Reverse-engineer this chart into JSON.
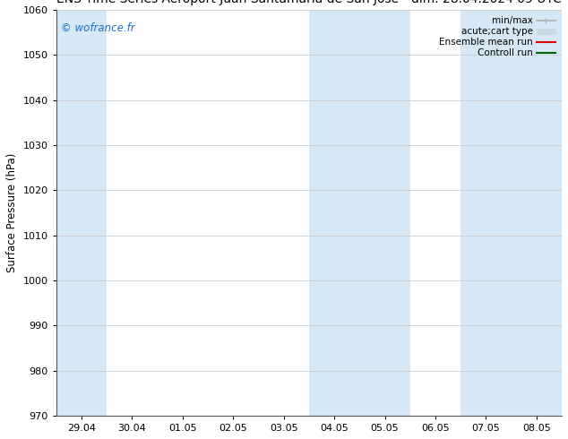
{
  "ylabel": "Surface Pressure (hPa)",
  "ylim": [
    970,
    1060
  ],
  "yticks": [
    970,
    980,
    990,
    1000,
    1010,
    1020,
    1030,
    1040,
    1050,
    1060
  ],
  "xtick_labels": [
    "29.04",
    "30.04",
    "01.05",
    "02.05",
    "03.05",
    "04.05",
    "05.05",
    "06.05",
    "07.05",
    "08.05"
  ],
  "xtick_positions": [
    0,
    1,
    2,
    3,
    4,
    5,
    6,
    7,
    8,
    9
  ],
  "xlim": [
    -0.5,
    9.5
  ],
  "shaded_bands": [
    {
      "x_start": -0.5,
      "x_end": 0.5
    },
    {
      "x_start": 4.5,
      "x_end": 6.5
    },
    {
      "x_start": 7.5,
      "x_end": 9.5
    }
  ],
  "shade_color": "#d6e8f5",
  "background_color": "#ffffff",
  "watermark": "© wofrance.fr",
  "watermark_color": "#1e6fc8",
  "legend_items": [
    {
      "label": "min/max",
      "color": "#b0b0b0",
      "lw": 1.2
    },
    {
      "label": "acute;cart type",
      "color": "#d0d8e0",
      "lw": 5
    },
    {
      "label": "Ensemble mean run",
      "color": "#dd0000",
      "lw": 1.5
    },
    {
      "label": "Controll run",
      "color": "#006600",
      "lw": 1.5
    }
  ],
  "grid_color": "#cccccc",
  "title_fontsize": 10,
  "axis_fontsize": 8.5,
  "tick_fontsize": 8,
  "legend_fontsize": 7.5
}
